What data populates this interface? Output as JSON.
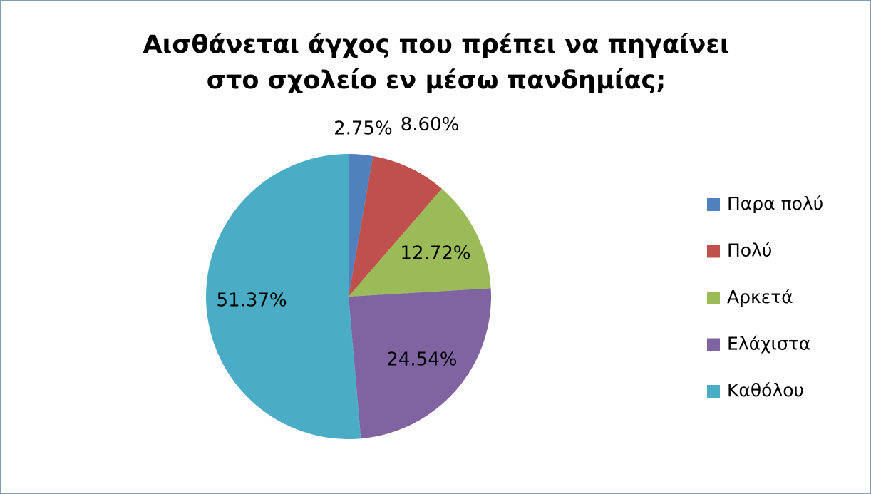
{
  "chart_data": {
    "type": "pie",
    "title": "Αισθάνεται άγχος που πρέπει να πηγαίνει στο σχολείο εν μέσω πανδημίας;",
    "categories": [
      "Παρα πολύ",
      "Πολύ",
      "Αρκετά",
      "Ελάχιστα",
      "Καθόλου"
    ],
    "values": [
      2.75,
      8.6,
      12.72,
      24.54,
      51.37
    ],
    "value_labels": [
      "2.75%",
      "8.60%",
      "12.72%",
      "24.54%",
      "51.37%"
    ],
    "colors": [
      "#4f81bd",
      "#c0504d",
      "#9bbb59",
      "#8064a2",
      "#4bacc6"
    ],
    "legend": "right"
  }
}
